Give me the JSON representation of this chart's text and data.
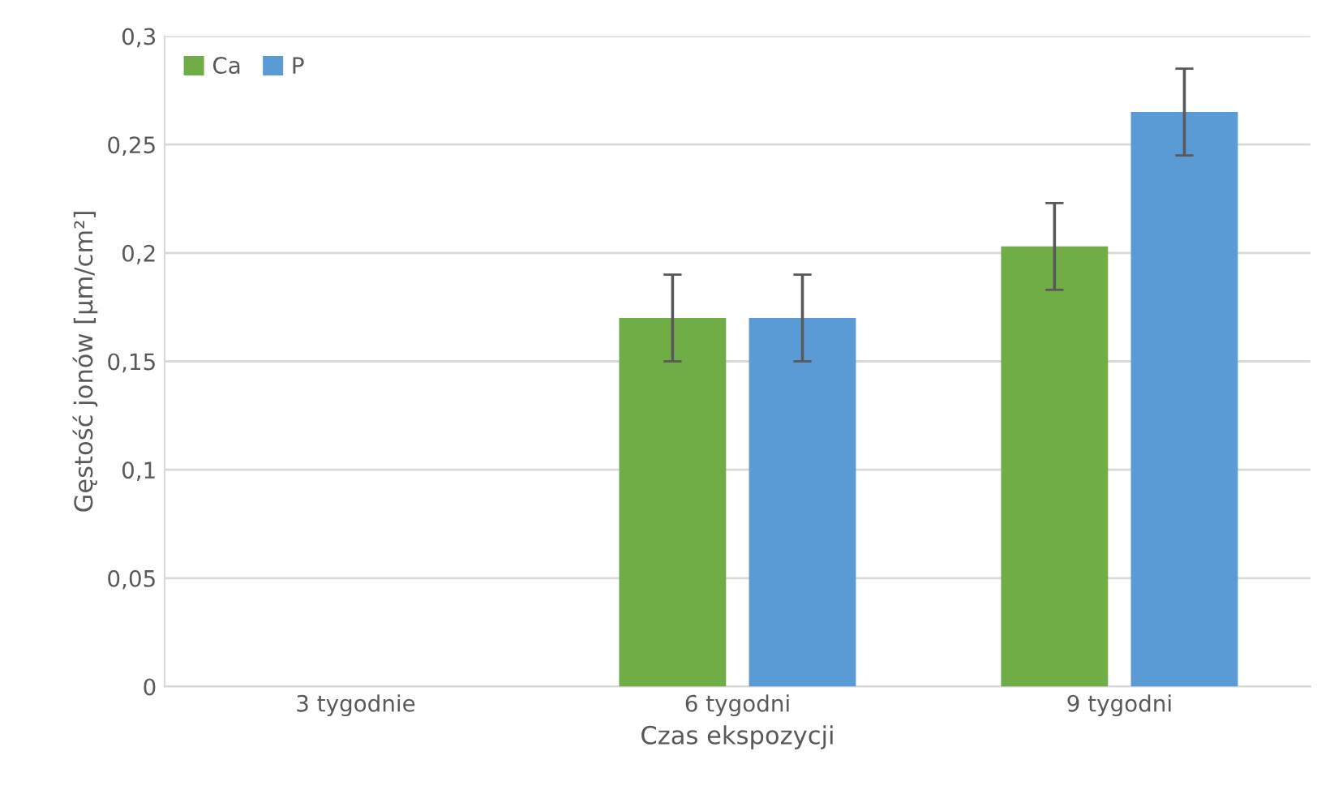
{
  "chart_data": {
    "type": "bar",
    "xlabel": "Czas ekspozycji",
    "ylabel": "Gęstość jonów [µm/cm²]",
    "categories": [
      "3 tygodnie",
      "6 tygodni",
      "9 tygodni"
    ],
    "series": [
      {
        "name": "Ca",
        "color": "#70ad47",
        "values": [
          null,
          0.17,
          0.203
        ],
        "errors": [
          null,
          0.02,
          0.02
        ]
      },
      {
        "name": "P",
        "color": "#5b9bd5",
        "values": [
          null,
          0.17,
          0.265
        ],
        "errors": [
          null,
          0.02,
          0.02
        ]
      }
    ],
    "ylim": [
      0,
      0.3
    ],
    "yticks": [
      {
        "value": 0,
        "label": "0"
      },
      {
        "value": 0.05,
        "label": "0,05"
      },
      {
        "value": 0.1,
        "label": "0,1"
      },
      {
        "value": 0.15,
        "label": "0,15"
      },
      {
        "value": 0.2,
        "label": "0,2"
      },
      {
        "value": 0.25,
        "label": "0,25"
      },
      {
        "value": 0.3,
        "label": "0,3"
      }
    ],
    "grid": "y",
    "legend": "top left"
  }
}
